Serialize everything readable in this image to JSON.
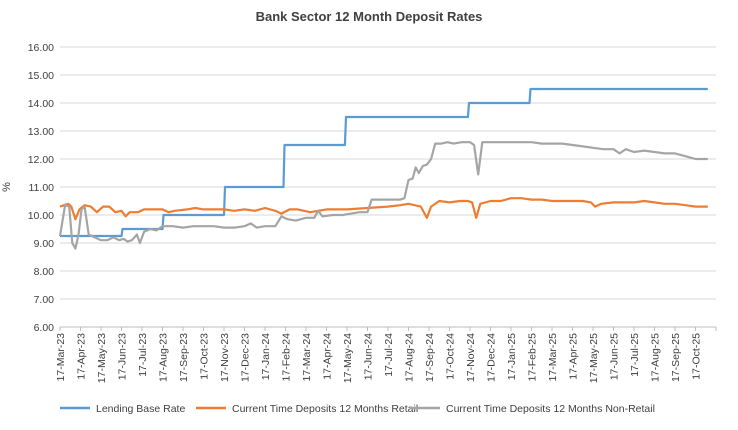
{
  "chart_data": {
    "type": "line",
    "title": "Bank Sector 12 Month Deposit Rates",
    "ylabel": "%",
    "xlabel": "",
    "ylim": [
      6.0,
      16.0
    ],
    "y_ticks": [
      "6.00",
      "7.00",
      "8.00",
      "9.00",
      "10.00",
      "11.00",
      "12.00",
      "13.00",
      "14.00",
      "15.00",
      "16.00"
    ],
    "x_tick_labels": [
      "17-Mar-23",
      "17-Apr-23",
      "17-May-23",
      "17-Jun-23",
      "17-Jul-23",
      "17-Aug-23",
      "17-Sep-23",
      "17-Oct-23",
      "17-Nov-23",
      "17-Dec-23",
      "17-Jan-24",
      "17-Feb-24",
      "17-Mar-24",
      "17-Apr-24",
      "17-May-24",
      "17-Jun-24",
      "17-Jul-24",
      "17-Aug-24",
      "17-Sep-24",
      "17-Oct-24",
      "17-Nov-24",
      "17-Dec-24",
      "17-Jan-25",
      "17-Feb-25",
      "17-Mar-25",
      "17-Apr-25",
      "17-May-25",
      "17-Jun-25",
      "17-Jul-25",
      "17-Aug-25",
      "17-Sep-25",
      "17-Oct-25"
    ],
    "grid": true,
    "legend_position": "bottom",
    "series": [
      {
        "name": "Lending Base Rate",
        "color": "#5b9bd5",
        "points": [
          [
            0,
            9.25
          ],
          [
            3.0,
            9.25
          ],
          [
            3.05,
            9.5
          ],
          [
            5.0,
            9.5
          ],
          [
            5.05,
            10.0
          ],
          [
            8.0,
            10.0
          ],
          [
            8.05,
            11.0
          ],
          [
            10.9,
            11.0
          ],
          [
            10.95,
            12.5
          ],
          [
            13.9,
            12.5
          ],
          [
            13.95,
            13.5
          ],
          [
            19.9,
            13.5
          ],
          [
            19.95,
            14.0
          ],
          [
            22.9,
            14.0
          ],
          [
            22.95,
            14.5
          ],
          [
            31.6,
            14.5
          ]
        ]
      },
      {
        "name": "Current Time Deposits 12 Months Retail",
        "color": "#ed7d31",
        "points": [
          [
            0,
            10.3
          ],
          [
            0.2,
            10.35
          ],
          [
            0.4,
            10.4
          ],
          [
            0.55,
            10.3
          ],
          [
            0.75,
            9.85
          ],
          [
            0.95,
            10.2
          ],
          [
            1.2,
            10.35
          ],
          [
            1.5,
            10.3
          ],
          [
            1.8,
            10.1
          ],
          [
            2.1,
            10.3
          ],
          [
            2.4,
            10.3
          ],
          [
            2.7,
            10.1
          ],
          [
            3.0,
            10.15
          ],
          [
            3.2,
            9.95
          ],
          [
            3.4,
            10.1
          ],
          [
            3.8,
            10.1
          ],
          [
            4.1,
            10.2
          ],
          [
            4.5,
            10.2
          ],
          [
            5.0,
            10.2
          ],
          [
            5.3,
            10.1
          ],
          [
            5.6,
            10.15
          ],
          [
            6.2,
            10.2
          ],
          [
            6.6,
            10.25
          ],
          [
            7.0,
            10.2
          ],
          [
            7.5,
            10.2
          ],
          [
            8.0,
            10.2
          ],
          [
            8.5,
            10.15
          ],
          [
            9.0,
            10.2
          ],
          [
            9.5,
            10.15
          ],
          [
            10.0,
            10.25
          ],
          [
            10.5,
            10.15
          ],
          [
            10.8,
            10.05
          ],
          [
            11.2,
            10.2
          ],
          [
            11.6,
            10.2
          ],
          [
            12.2,
            10.1
          ],
          [
            12.6,
            10.15
          ],
          [
            13.0,
            10.2
          ],
          [
            14.0,
            10.2
          ],
          [
            15.0,
            10.25
          ],
          [
            16.0,
            10.3
          ],
          [
            16.6,
            10.35
          ],
          [
            17.0,
            10.4
          ],
          [
            17.6,
            10.3
          ],
          [
            17.9,
            9.9
          ],
          [
            18.1,
            10.3
          ],
          [
            18.5,
            10.5
          ],
          [
            19.0,
            10.45
          ],
          [
            19.5,
            10.5
          ],
          [
            19.9,
            10.5
          ],
          [
            20.1,
            10.45
          ],
          [
            20.3,
            9.9
          ],
          [
            20.5,
            10.4
          ],
          [
            21.0,
            10.5
          ],
          [
            21.5,
            10.5
          ],
          [
            22.0,
            10.6
          ],
          [
            22.5,
            10.6
          ],
          [
            23.0,
            10.55
          ],
          [
            23.5,
            10.55
          ],
          [
            24.0,
            10.5
          ],
          [
            24.5,
            10.5
          ],
          [
            25.0,
            10.5
          ],
          [
            25.5,
            10.5
          ],
          [
            25.9,
            10.45
          ],
          [
            26.1,
            10.3
          ],
          [
            26.4,
            10.4
          ],
          [
            27.0,
            10.45
          ],
          [
            27.5,
            10.45
          ],
          [
            28.0,
            10.45
          ],
          [
            28.5,
            10.5
          ],
          [
            29.0,
            10.45
          ],
          [
            29.5,
            10.4
          ],
          [
            30.0,
            10.4
          ],
          [
            30.5,
            10.35
          ],
          [
            31.0,
            10.3
          ],
          [
            31.6,
            10.3
          ]
        ]
      },
      {
        "name": "Current Time Deposits 12 Months Non-Retail",
        "color": "#a5a5a5",
        "points": [
          [
            0,
            9.25
          ],
          [
            0.25,
            10.35
          ],
          [
            0.45,
            10.3
          ],
          [
            0.6,
            9.0
          ],
          [
            0.75,
            8.8
          ],
          [
            0.9,
            9.3
          ],
          [
            1.05,
            10.2
          ],
          [
            1.2,
            10.3
          ],
          [
            1.4,
            9.3
          ],
          [
            1.7,
            9.2
          ],
          [
            2.0,
            9.1
          ],
          [
            2.3,
            9.1
          ],
          [
            2.6,
            9.2
          ],
          [
            2.9,
            9.1
          ],
          [
            3.1,
            9.15
          ],
          [
            3.3,
            9.05
          ],
          [
            3.5,
            9.1
          ],
          [
            3.75,
            9.3
          ],
          [
            3.9,
            9.0
          ],
          [
            4.1,
            9.4
          ],
          [
            4.4,
            9.5
          ],
          [
            4.7,
            9.45
          ],
          [
            5.0,
            9.6
          ],
          [
            5.5,
            9.6
          ],
          [
            6.0,
            9.55
          ],
          [
            6.5,
            9.6
          ],
          [
            7.0,
            9.6
          ],
          [
            7.5,
            9.6
          ],
          [
            8.0,
            9.55
          ],
          [
            8.5,
            9.55
          ],
          [
            9.0,
            9.6
          ],
          [
            9.3,
            9.7
          ],
          [
            9.6,
            9.55
          ],
          [
            10.0,
            9.6
          ],
          [
            10.5,
            9.6
          ],
          [
            10.8,
            9.95
          ],
          [
            11.1,
            9.85
          ],
          [
            11.5,
            9.8
          ],
          [
            12.0,
            9.9
          ],
          [
            12.4,
            9.9
          ],
          [
            12.6,
            10.15
          ],
          [
            12.8,
            9.95
          ],
          [
            13.3,
            10.0
          ],
          [
            13.8,
            10.0
          ],
          [
            14.2,
            10.05
          ],
          [
            14.6,
            10.1
          ],
          [
            15.0,
            10.1
          ],
          [
            15.2,
            10.55
          ],
          [
            15.6,
            10.55
          ],
          [
            16.2,
            10.55
          ],
          [
            16.6,
            10.55
          ],
          [
            16.8,
            10.6
          ],
          [
            17.0,
            11.25
          ],
          [
            17.2,
            11.3
          ],
          [
            17.35,
            11.7
          ],
          [
            17.5,
            11.5
          ],
          [
            17.7,
            11.75
          ],
          [
            17.9,
            11.8
          ],
          [
            18.1,
            12.0
          ],
          [
            18.3,
            12.55
          ],
          [
            18.6,
            12.55
          ],
          [
            18.9,
            12.6
          ],
          [
            19.2,
            12.55
          ],
          [
            19.6,
            12.6
          ],
          [
            20.0,
            12.6
          ],
          [
            20.2,
            12.5
          ],
          [
            20.4,
            11.45
          ],
          [
            20.6,
            12.6
          ],
          [
            21.0,
            12.6
          ],
          [
            21.5,
            12.6
          ],
          [
            22.0,
            12.6
          ],
          [
            22.5,
            12.6
          ],
          [
            23.0,
            12.6
          ],
          [
            23.5,
            12.55
          ],
          [
            24.0,
            12.55
          ],
          [
            24.5,
            12.55
          ],
          [
            25.0,
            12.5
          ],
          [
            25.5,
            12.45
          ],
          [
            26.0,
            12.4
          ],
          [
            26.5,
            12.35
          ],
          [
            27.0,
            12.35
          ],
          [
            27.3,
            12.2
          ],
          [
            27.6,
            12.35
          ],
          [
            28.0,
            12.25
          ],
          [
            28.5,
            12.3
          ],
          [
            29.0,
            12.25
          ],
          [
            29.5,
            12.2
          ],
          [
            30.0,
            12.2
          ],
          [
            30.5,
            12.1
          ],
          [
            31.0,
            12.0
          ],
          [
            31.6,
            12.0
          ]
        ]
      }
    ]
  }
}
